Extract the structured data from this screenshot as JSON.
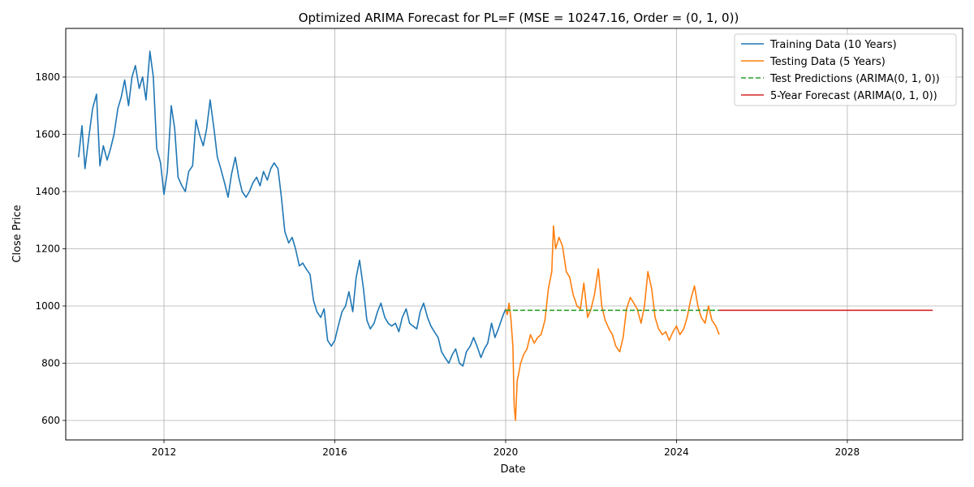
{
  "chart_data": {
    "type": "line",
    "title": "Optimized ARIMA Forecast for PL=F (MSE = 10247.16, Order = (0, 1, 0))",
    "xlabel": "Date",
    "ylabel": "Close Price",
    "xlim": [
      2009.7,
      2030.7
    ],
    "ylim": [
      532,
      1970
    ],
    "x_ticks": [
      2012,
      2016,
      2020,
      2024,
      2028
    ],
    "x_tick_labels": [
      "2012",
      "2016",
      "2020",
      "2024",
      "2028"
    ],
    "y_ticks": [
      600,
      800,
      1000,
      1200,
      1400,
      1600,
      1800
    ],
    "y_tick_labels": [
      "600",
      "800",
      "1000",
      "1200",
      "1400",
      "1600",
      "1800"
    ],
    "grid": true,
    "legend_position": "top-right",
    "series": [
      {
        "name": "Training Data (10 Years)",
        "color": "#1f77b4",
        "style": "solid",
        "points": [
          [
            2010.0,
            1520
          ],
          [
            2010.08,
            1630
          ],
          [
            2010.15,
            1480
          ],
          [
            2010.25,
            1600
          ],
          [
            2010.33,
            1690
          ],
          [
            2010.42,
            1740
          ],
          [
            2010.5,
            1490
          ],
          [
            2010.58,
            1560
          ],
          [
            2010.67,
            1510
          ],
          [
            2010.75,
            1550
          ],
          [
            2010.83,
            1600
          ],
          [
            2010.92,
            1690
          ],
          [
            2011.0,
            1730
          ],
          [
            2011.08,
            1790
          ],
          [
            2011.17,
            1700
          ],
          [
            2011.25,
            1800
          ],
          [
            2011.33,
            1840
          ],
          [
            2011.42,
            1760
          ],
          [
            2011.5,
            1800
          ],
          [
            2011.58,
            1720
          ],
          [
            2011.67,
            1890
          ],
          [
            2011.75,
            1800
          ],
          [
            2011.83,
            1550
          ],
          [
            2011.92,
            1500
          ],
          [
            2012.0,
            1390
          ],
          [
            2012.08,
            1470
          ],
          [
            2012.17,
            1700
          ],
          [
            2012.25,
            1620
          ],
          [
            2012.33,
            1450
          ],
          [
            2012.42,
            1420
          ],
          [
            2012.5,
            1400
          ],
          [
            2012.58,
            1470
          ],
          [
            2012.67,
            1490
          ],
          [
            2012.75,
            1650
          ],
          [
            2012.83,
            1600
          ],
          [
            2012.92,
            1560
          ],
          [
            2013.0,
            1620
          ],
          [
            2013.08,
            1720
          ],
          [
            2013.17,
            1620
          ],
          [
            2013.25,
            1520
          ],
          [
            2013.33,
            1480
          ],
          [
            2013.42,
            1430
          ],
          [
            2013.5,
            1380
          ],
          [
            2013.58,
            1460
          ],
          [
            2013.67,
            1520
          ],
          [
            2013.75,
            1450
          ],
          [
            2013.83,
            1400
          ],
          [
            2013.92,
            1380
          ],
          [
            2014.0,
            1400
          ],
          [
            2014.08,
            1430
          ],
          [
            2014.17,
            1450
          ],
          [
            2014.25,
            1420
          ],
          [
            2014.33,
            1470
          ],
          [
            2014.42,
            1440
          ],
          [
            2014.5,
            1480
          ],
          [
            2014.58,
            1500
          ],
          [
            2014.67,
            1480
          ],
          [
            2014.75,
            1380
          ],
          [
            2014.83,
            1260
          ],
          [
            2014.92,
            1220
          ],
          [
            2015.0,
            1240
          ],
          [
            2015.08,
            1200
          ],
          [
            2015.17,
            1140
          ],
          [
            2015.25,
            1150
          ],
          [
            2015.33,
            1130
          ],
          [
            2015.42,
            1110
          ],
          [
            2015.5,
            1020
          ],
          [
            2015.58,
            980
          ],
          [
            2015.67,
            960
          ],
          [
            2015.75,
            990
          ],
          [
            2015.83,
            880
          ],
          [
            2015.92,
            860
          ],
          [
            2016.0,
            880
          ],
          [
            2016.08,
            930
          ],
          [
            2016.17,
            980
          ],
          [
            2016.25,
            1000
          ],
          [
            2016.33,
            1050
          ],
          [
            2016.42,
            980
          ],
          [
            2016.5,
            1100
          ],
          [
            2016.58,
            1160
          ],
          [
            2016.67,
            1060
          ],
          [
            2016.75,
            950
          ],
          [
            2016.83,
            920
          ],
          [
            2016.92,
            940
          ],
          [
            2017.0,
            980
          ],
          [
            2017.08,
            1010
          ],
          [
            2017.17,
            960
          ],
          [
            2017.25,
            940
          ],
          [
            2017.33,
            930
          ],
          [
            2017.42,
            940
          ],
          [
            2017.5,
            910
          ],
          [
            2017.58,
            960
          ],
          [
            2017.67,
            990
          ],
          [
            2017.75,
            940
          ],
          [
            2017.83,
            930
          ],
          [
            2017.92,
            920
          ],
          [
            2018.0,
            980
          ],
          [
            2018.08,
            1010
          ],
          [
            2018.17,
            960
          ],
          [
            2018.25,
            930
          ],
          [
            2018.33,
            910
          ],
          [
            2018.42,
            890
          ],
          [
            2018.5,
            840
          ],
          [
            2018.58,
            820
          ],
          [
            2018.67,
            800
          ],
          [
            2018.75,
            830
          ],
          [
            2018.83,
            850
          ],
          [
            2018.92,
            800
          ],
          [
            2019.0,
            790
          ],
          [
            2019.08,
            840
          ],
          [
            2019.17,
            860
          ],
          [
            2019.25,
            890
          ],
          [
            2019.33,
            860
          ],
          [
            2019.42,
            820
          ],
          [
            2019.5,
            850
          ],
          [
            2019.58,
            870
          ],
          [
            2019.67,
            940
          ],
          [
            2019.75,
            890
          ],
          [
            2019.83,
            920
          ],
          [
            2019.92,
            960
          ],
          [
            2020.0,
            990
          ]
        ]
      },
      {
        "name": "Testing Data (5 Years)",
        "color": "#ff7f0e",
        "style": "solid",
        "points": [
          [
            2020.0,
            990
          ],
          [
            2020.04,
            970
          ],
          [
            2020.08,
            1010
          ],
          [
            2020.12,
            960
          ],
          [
            2020.17,
            860
          ],
          [
            2020.2,
            650
          ],
          [
            2020.23,
            600
          ],
          [
            2020.27,
            740
          ],
          [
            2020.3,
            760
          ],
          [
            2020.35,
            800
          ],
          [
            2020.42,
            830
          ],
          [
            2020.5,
            850
          ],
          [
            2020.58,
            900
          ],
          [
            2020.67,
            870
          ],
          [
            2020.75,
            890
          ],
          [
            2020.83,
            900
          ],
          [
            2020.92,
            950
          ],
          [
            2021.0,
            1060
          ],
          [
            2021.08,
            1120
          ],
          [
            2021.12,
            1280
          ],
          [
            2021.17,
            1200
          ],
          [
            2021.25,
            1240
          ],
          [
            2021.33,
            1210
          ],
          [
            2021.42,
            1120
          ],
          [
            2021.5,
            1100
          ],
          [
            2021.58,
            1040
          ],
          [
            2021.67,
            1000
          ],
          [
            2021.75,
            990
          ],
          [
            2021.83,
            1080
          ],
          [
            2021.92,
            960
          ],
          [
            2022.0,
            990
          ],
          [
            2022.08,
            1040
          ],
          [
            2022.17,
            1130
          ],
          [
            2022.25,
            1000
          ],
          [
            2022.33,
            950
          ],
          [
            2022.42,
            920
          ],
          [
            2022.5,
            900
          ],
          [
            2022.58,
            860
          ],
          [
            2022.67,
            840
          ],
          [
            2022.75,
            890
          ],
          [
            2022.83,
            990
          ],
          [
            2022.92,
            1030
          ],
          [
            2023.0,
            1010
          ],
          [
            2023.08,
            990
          ],
          [
            2023.17,
            940
          ],
          [
            2023.25,
            1000
          ],
          [
            2023.33,
            1120
          ],
          [
            2023.42,
            1060
          ],
          [
            2023.5,
            960
          ],
          [
            2023.58,
            920
          ],
          [
            2023.67,
            900
          ],
          [
            2023.75,
            910
          ],
          [
            2023.83,
            880
          ],
          [
            2023.92,
            910
          ],
          [
            2024.0,
            930
          ],
          [
            2024.08,
            900
          ],
          [
            2024.17,
            920
          ],
          [
            2024.25,
            960
          ],
          [
            2024.33,
            1020
          ],
          [
            2024.42,
            1070
          ],
          [
            2024.5,
            1000
          ],
          [
            2024.58,
            960
          ],
          [
            2024.67,
            940
          ],
          [
            2024.75,
            1000
          ],
          [
            2024.83,
            950
          ],
          [
            2024.92,
            930
          ],
          [
            2025.0,
            900
          ]
        ]
      },
      {
        "name": "Test Predictions (ARIMA(0, 1, 0))",
        "color": "#2ca02c",
        "style": "dashed",
        "points": [
          [
            2020.0,
            985
          ],
          [
            2025.0,
            985
          ]
        ]
      },
      {
        "name": "5-Year Forecast (ARIMA(0, 1, 0))",
        "color": "#d62728",
        "style": "solid",
        "points": [
          [
            2025.0,
            985
          ],
          [
            2030.0,
            985
          ]
        ]
      }
    ]
  }
}
